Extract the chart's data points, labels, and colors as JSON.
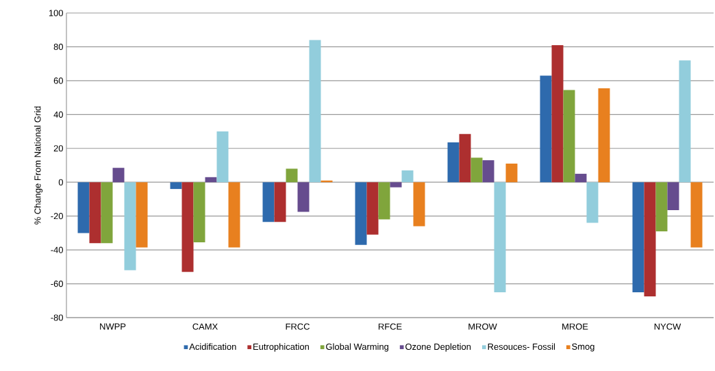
{
  "chart_data": {
    "type": "bar",
    "ylabel": "% Change From National Grid",
    "categories": [
      "NWPP",
      "CAMX",
      "FRCC",
      "RFCE",
      "MROW",
      "MROE",
      "NYCW"
    ],
    "series": [
      {
        "name": "Acidification",
        "color": "#2e6aad",
        "values": [
          -30,
          -4,
          -23.5,
          -37,
          23.5,
          63,
          -65
        ]
      },
      {
        "name": "Eutrophication",
        "color": "#ad2f2f",
        "values": [
          -36,
          -53,
          -23.5,
          -31,
          28.5,
          81,
          -67.5
        ]
      },
      {
        "name": "Global Warming",
        "color": "#80a53c",
        "values": [
          -36,
          -35.5,
          8,
          -22,
          14.5,
          54.5,
          -29
        ]
      },
      {
        "name": "Ozone Depletion",
        "color": "#664c8e",
        "values": [
          8.5,
          3,
          -17.5,
          -3,
          13,
          5,
          -16.5
        ]
      },
      {
        "name": "Resouces- Fossil",
        "color": "#92cddc",
        "values": [
          -52,
          30,
          84,
          7,
          -65,
          -24,
          72
        ]
      },
      {
        "name": "Smog",
        "color": "#e8801f",
        "values": [
          -38.5,
          -38.5,
          1,
          -26,
          11,
          55.5,
          -38.5
        ]
      }
    ],
    "ylim": [
      -80,
      100
    ],
    "yticks": [
      -80,
      -60,
      -40,
      -20,
      0,
      20,
      40,
      60,
      80,
      100
    ],
    "grid": "y",
    "legend": "bottom"
  }
}
